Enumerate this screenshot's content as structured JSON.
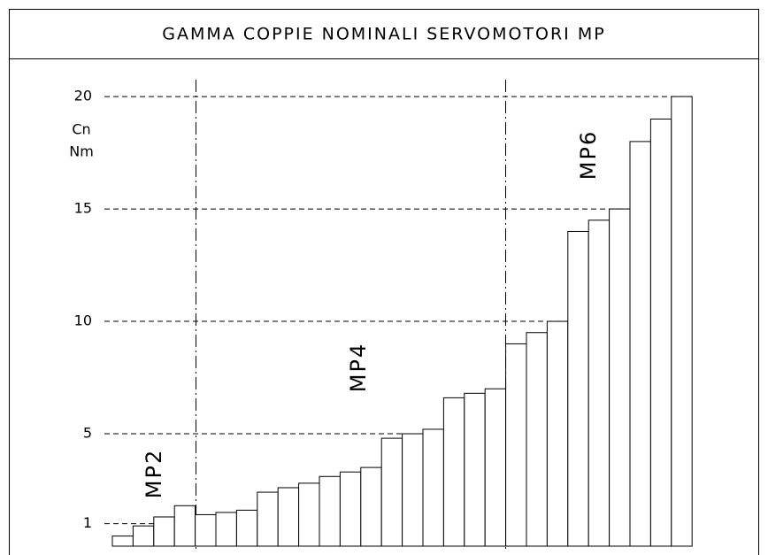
{
  "chart_data": {
    "type": "bar",
    "title": "GAMMA COPPIE NOMINALI SERVOMOTORI MP",
    "y_label": [
      "Cn",
      "Nm"
    ],
    "annotations": [
      "MP2",
      "MP4",
      "MP6"
    ],
    "values": [
      0.45,
      0.9,
      1.3,
      1.8,
      1.4,
      1.5,
      1.6,
      2.4,
      2.6,
      2.8,
      3.1,
      3.3,
      3.5,
      4.8,
      5.0,
      5.2,
      6.6,
      6.8,
      7.0,
      9.0,
      9.5,
      10,
      14.0,
      14.5,
      15,
      18,
      19,
      20
    ],
    "color": "#ffffff",
    "ylim": [
      0,
      21.5
    ],
    "yticks": [
      1,
      5,
      10,
      15,
      20
    ],
    "grid": true
  }
}
